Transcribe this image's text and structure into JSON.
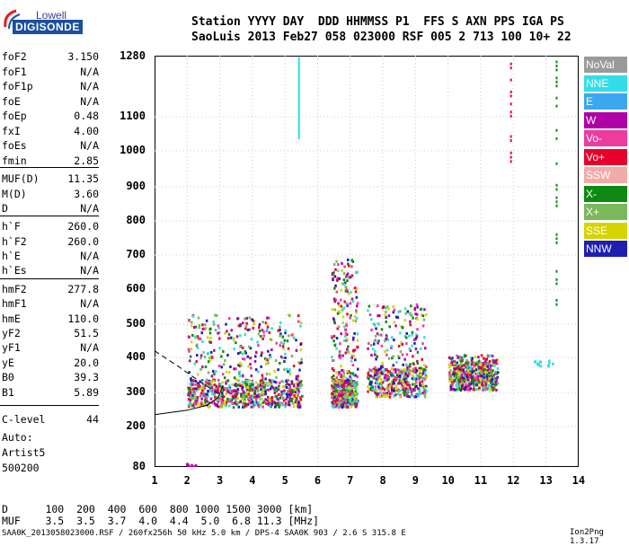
{
  "logo": {
    "top": "Lowell",
    "main": "DIGISONDE"
  },
  "header": {
    "line1": "Station YYYY DAY  DDD HHMMSS P1  FFS S AXN PPS IGA PS",
    "line2": "SaoLuis 2013 Feb27 058 023000 RSF 005 2 713 100 10+ 22"
  },
  "params": [
    {
      "name": "foF2",
      "value": "3.150"
    },
    {
      "name": "foF1",
      "value": "N/A"
    },
    {
      "name": "foF1p",
      "value": "N/A"
    },
    {
      "name": "foE",
      "value": "N/A"
    },
    {
      "name": "foEp",
      "value": "0.48"
    },
    {
      "name": "fxI",
      "value": "4.00"
    },
    {
      "name": "foEs",
      "value": "N/A"
    },
    {
      "name": "fmin",
      "value": "2.85"
    },
    {
      "name": "MUF(D)",
      "value": "11.35"
    },
    {
      "name": "M(D)",
      "value": "3.60"
    },
    {
      "name": "D",
      "value": "N/A"
    },
    {
      "name": "h`F",
      "value": "260.0"
    },
    {
      "name": "h`F2",
      "value": "260.0"
    },
    {
      "name": "h`E",
      "value": "N/A"
    },
    {
      "name": "h`Es",
      "value": "N/A"
    },
    {
      "name": "hmF2",
      "value": "277.8"
    },
    {
      "name": "hmF1",
      "value": "N/A"
    },
    {
      "name": "hmE",
      "value": "110.0"
    },
    {
      "name": "yF2",
      "value": "51.5"
    },
    {
      "name": "yF1",
      "value": "N/A"
    },
    {
      "name": "yE",
      "value": "20.0"
    },
    {
      "name": "B0",
      "value": "39.3"
    },
    {
      "name": "B1",
      "value": "5.89"
    },
    {
      "name": "C-level",
      "value": "44"
    }
  ],
  "auto": {
    "label": "Auto:",
    "artist": "Artist5",
    "version": "500200"
  },
  "legend": [
    {
      "label": "NoVal",
      "color": "#9a9a9a"
    },
    {
      "label": "NNE",
      "color": "#33dde8"
    },
    {
      "label": "E",
      "color": "#3aa7ee"
    },
    {
      "label": "W",
      "color": "#b000a8"
    },
    {
      "label": "Vo-",
      "color": "#ec3c9c"
    },
    {
      "label": "Vo+",
      "color": "#e8002c"
    },
    {
      "label": "SSW",
      "color": "#f4aaa8"
    },
    {
      "label": "X-",
      "color": "#0e8a12"
    },
    {
      "label": "X+",
      "color": "#7ab85c"
    },
    {
      "label": "SSE",
      "color": "#d6d400"
    },
    {
      "label": "NNW",
      "color": "#1e1eb0"
    }
  ],
  "chart_data": {
    "type": "scatter",
    "title": "",
    "xlabel": "",
    "ylabel": "",
    "x_ticks": [
      "1",
      "2",
      "3",
      "4",
      "5",
      "6",
      "7",
      "8",
      "9",
      "10",
      "11",
      "12",
      "13",
      "14"
    ],
    "y_ticks": [
      "80",
      "200",
      "300",
      "400",
      "500",
      "600",
      "700",
      "800",
      "900",
      "1000",
      "1100",
      "1280"
    ],
    "xlim": [
      1,
      14
    ],
    "y_scale": "nonlinear (heights km)",
    "legend_placement": "right",
    "clusters": [
      {
        "x_range": [
          1.9,
          2.4
        ],
        "y_range": [
          82,
          92
        ],
        "note": "low echoes"
      },
      {
        "x_range": [
          2.0,
          5.5
        ],
        "y_range": [
          260,
          530
        ],
        "note": "F trace"
      },
      {
        "x_range": [
          6.4,
          7.2
        ],
        "y_range": [
          260,
          690
        ],
        "note": "spread F"
      },
      {
        "x_range": [
          7.5,
          9.3
        ],
        "y_range": [
          290,
          560
        ],
        "note": "spread F"
      },
      {
        "x_range": [
          10.0,
          11.5
        ],
        "y_range": [
          310,
          410
        ],
        "note": "spread F"
      },
      {
        "x_range": [
          12.6,
          13.2
        ],
        "y_range": [
          375,
          395
        ],
        "note": "NNE echoes"
      }
    ]
  },
  "footer": {
    "line1": "D      100  200  400  600  800 1000 1500 3000 [km]",
    "line2": "MUF    3.5  3.5  3.7  4.0  4.4  5.0  6.8 11.3 [MHz]",
    "line3": "SAA0K_2013058023000.RSF / 260fx256h 50 kHz 5.0 km / DPS-4 SAA0K 903 / 2.6 S 315.8 E",
    "version": "Ion2Png 1.3.17"
  }
}
